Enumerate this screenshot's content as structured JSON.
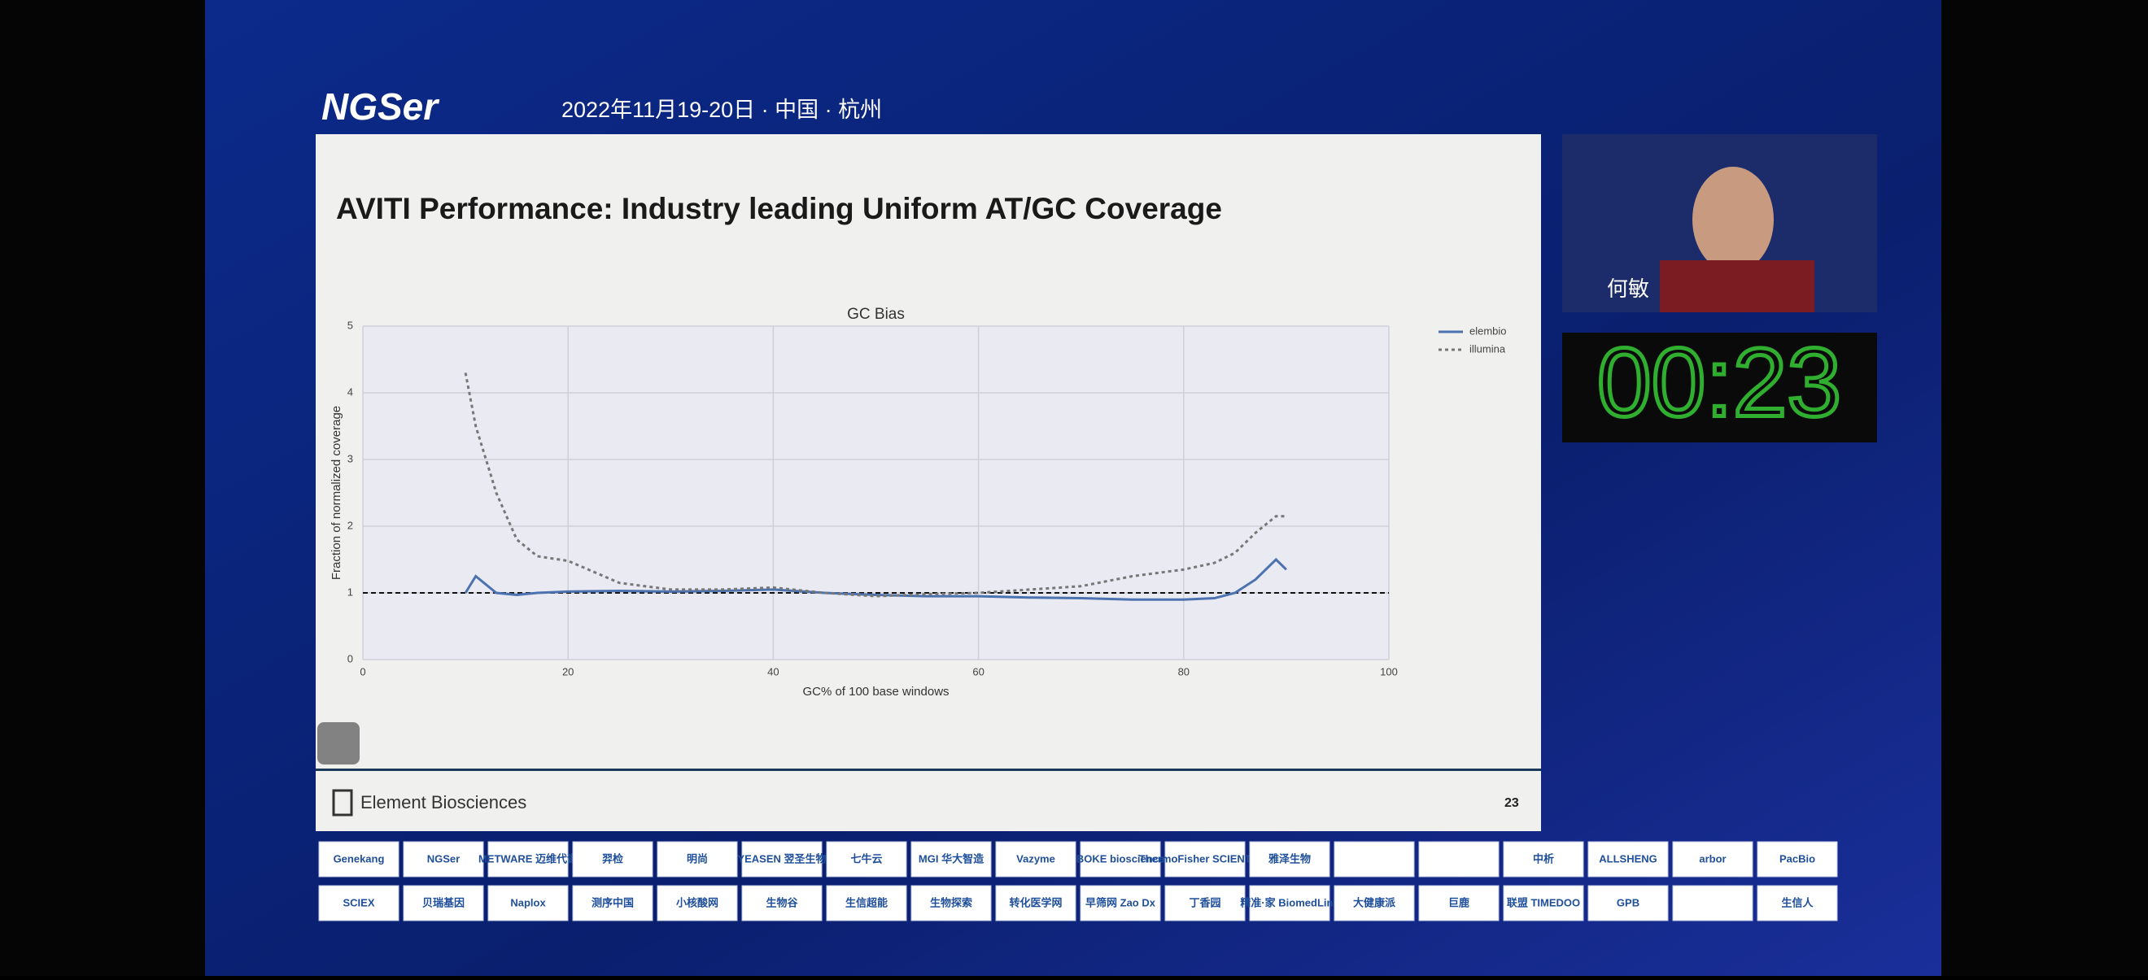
{
  "header": {
    "logo": "NGSer",
    "date": "2022年11月19-20日 · 中国 · 杭州"
  },
  "slide": {
    "title": "AVITI Performance: Industry leading Uniform AT/GC Coverage",
    "company": "Element Biosciences",
    "page": "23"
  },
  "chart_data": {
    "type": "line",
    "title": "GC Bias",
    "x_label": "GC% of 100 base windows",
    "y_label": "Fraction of normalized coverage",
    "x": [
      10,
      11,
      13,
      15,
      17,
      20,
      25,
      30,
      35,
      40,
      45,
      50,
      55,
      60,
      65,
      70,
      75,
      80,
      83,
      85,
      87,
      89,
      90
    ],
    "series": [
      {
        "name": "elembio",
        "color": "#4c72b0",
        "style": "solid",
        "values": [
          1.0,
          1.25,
          1.0,
          0.97,
          1.0,
          1.02,
          1.03,
          1.02,
          1.03,
          1.05,
          1.0,
          0.97,
          0.95,
          0.95,
          0.93,
          0.92,
          0.9,
          0.9,
          0.92,
          1.0,
          1.2,
          1.5,
          1.35
        ]
      },
      {
        "name": "illumina",
        "color": "#777777",
        "style": "dashed",
        "values": [
          4.3,
          3.5,
          2.5,
          1.8,
          1.55,
          1.48,
          1.15,
          1.05,
          1.05,
          1.08,
          1.0,
          0.95,
          0.98,
          1.0,
          1.05,
          1.1,
          1.25,
          1.35,
          1.45,
          1.6,
          1.9,
          2.15,
          2.15
        ]
      }
    ],
    "hline": 1,
    "xlim": [
      0,
      100
    ],
    "xticks": [
      0,
      20,
      40,
      60,
      80,
      100
    ],
    "ylim": [
      0,
      5
    ],
    "yticks": [
      0,
      1,
      2,
      3,
      4,
      5
    ],
    "grid": true,
    "legend": "upper right"
  },
  "speaker": {
    "name": "何敏"
  },
  "timer": "00:23",
  "sponsors": [
    [
      "Genekang",
      "NGSer",
      "METWARE 迈维代谢",
      "羿检",
      "明尚",
      "YEASEN 翌圣生物",
      "七牛云",
      "MGI 华大智造",
      "Vazyme",
      "BOKE bioscience",
      "ThermoFisher SCIENTIFIC",
      "雅泽生物",
      "",
      "",
      "中析",
      "ALLSHENG",
      "arbor",
      "PacBio"
    ],
    [
      "SCIEX",
      "贝瑞基因",
      "Naplox",
      "测序中国",
      "小核酸网",
      "生物谷",
      "生信超能",
      "生物探索",
      "转化医学网",
      "早筛网 Zao Dx",
      "丁香园",
      "精准·家 BiomedLink",
      "大健康派",
      "巨鹿",
      "联盟 TIMEDOO",
      "GPB",
      "",
      "生信人"
    ]
  ]
}
